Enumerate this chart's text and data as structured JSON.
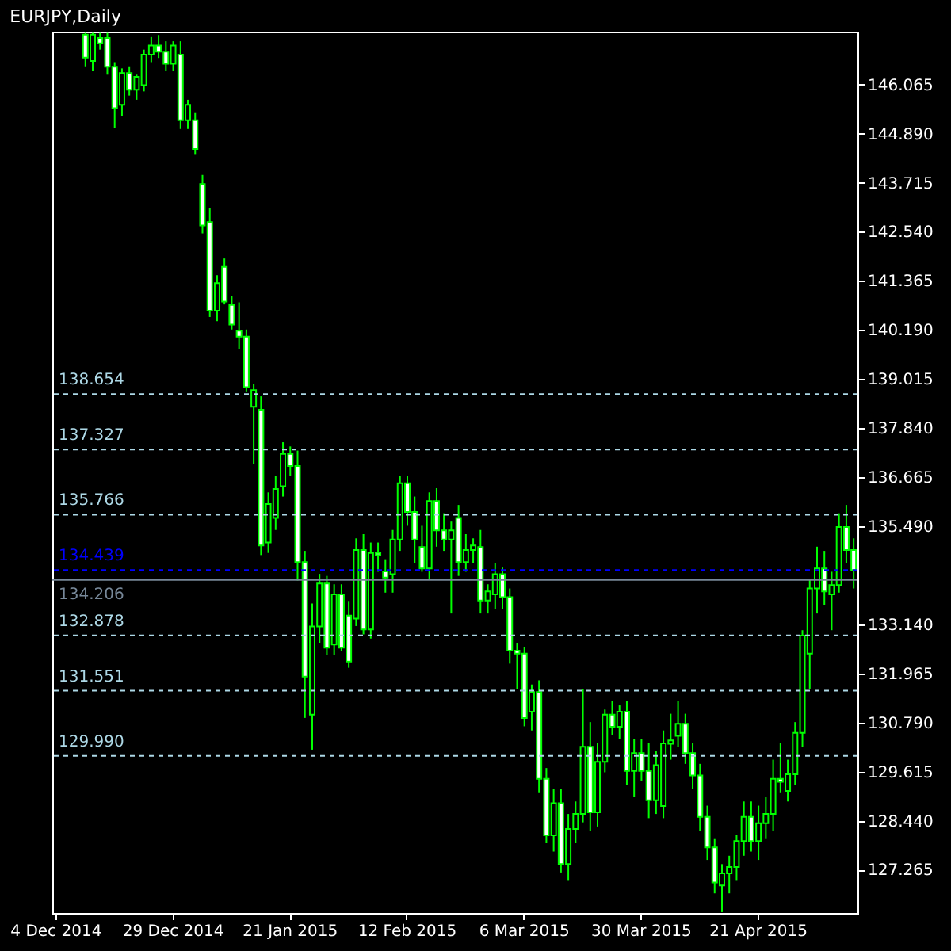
{
  "chart_data": {
    "type": "candlestick",
    "title": "EURJPY,Daily",
    "categories": [
      "4 Dec 2014",
      null,
      null,
      null,
      null,
      null,
      null,
      null,
      null,
      null,
      null,
      null,
      null,
      null,
      null,
      null,
      "29 Dec 2014",
      null,
      null,
      null,
      null,
      null,
      null,
      null,
      null,
      null,
      null,
      null,
      null,
      null,
      null,
      null,
      "21 Jan 2015",
      null,
      null,
      null,
      null,
      null,
      null,
      null,
      null,
      null,
      null,
      null,
      null,
      null,
      null,
      null,
      "12 Feb 2015",
      null,
      null,
      null,
      null,
      null,
      null,
      null,
      null,
      null,
      null,
      null,
      null,
      null,
      null,
      null,
      "6 Mar 2015",
      null,
      null,
      null,
      null,
      null,
      null,
      null,
      null,
      null,
      null,
      null,
      null,
      null,
      null,
      null,
      "30 Mar 2015",
      null,
      null,
      null,
      null,
      null,
      null,
      null,
      null,
      null,
      null,
      null,
      null,
      null,
      null,
      null,
      "21 Apr 2015",
      null,
      null,
      null,
      null,
      null,
      null,
      null,
      null,
      null,
      null,
      null,
      null,
      null
    ],
    "ohlc": [
      null,
      null,
      null,
      null,
      [
        147.26,
        147.3,
        146.5,
        146.71
      ],
      [
        146.63,
        147.3,
        146.4,
        147.26
      ],
      [
        147.18,
        147.3,
        146.9,
        147.05
      ],
      [
        147.18,
        147.3,
        146.3,
        146.49
      ],
      [
        146.49,
        146.6,
        145.03,
        145.5
      ],
      [
        145.58,
        146.45,
        145.3,
        146.34
      ],
      [
        146.34,
        146.5,
        145.8,
        145.94
      ],
      [
        145.94,
        146.3,
        145.7,
        146.25
      ],
      [
        146.05,
        146.9,
        145.9,
        146.78
      ],
      [
        146.78,
        147.2,
        146.6,
        147.0
      ],
      [
        147.0,
        147.25,
        146.7,
        146.85
      ],
      [
        146.85,
        147.1,
        146.4,
        146.56
      ],
      [
        146.56,
        147.1,
        146.4,
        147.0
      ],
      [
        146.78,
        147.1,
        145.0,
        145.21
      ],
      [
        145.21,
        145.7,
        145.0,
        145.58
      ],
      [
        145.21,
        145.4,
        144.4,
        144.52
      ],
      [
        143.68,
        143.9,
        142.5,
        142.69
      ],
      [
        142.77,
        143.1,
        140.5,
        140.65
      ],
      [
        140.65,
        141.5,
        140.4,
        141.31
      ],
      [
        141.7,
        141.9,
        140.8,
        140.87
      ],
      [
        140.79,
        141.0,
        140.2,
        140.32
      ],
      [
        140.17,
        140.85,
        139.73,
        140.03
      ],
      [
        140.03,
        140.2,
        138.7,
        138.82
      ],
      [
        138.35,
        138.9,
        136.98,
        138.75
      ],
      [
        138.28,
        138.6,
        134.8,
        135.03
      ],
      [
        135.1,
        136.3,
        134.85,
        136.02
      ],
      [
        135.69,
        136.7,
        135.4,
        136.38
      ],
      [
        136.45,
        137.5,
        136.2,
        137.22
      ],
      [
        137.22,
        137.4,
        136.7,
        136.93
      ],
      [
        136.93,
        137.3,
        134.19,
        134.63
      ],
      [
        134.63,
        134.9,
        130.9,
        131.89
      ],
      [
        130.98,
        133.64,
        130.14,
        133.09
      ],
      [
        133.09,
        134.35,
        132.7,
        134.12
      ],
      [
        134.12,
        134.3,
        132.4,
        132.58
      ],
      [
        132.66,
        134.1,
        132.4,
        133.86
      ],
      [
        133.86,
        134.1,
        132.5,
        132.58
      ],
      [
        133.35,
        133.7,
        132.1,
        132.25
      ],
      [
        133.28,
        135.2,
        133.1,
        134.92
      ],
      [
        134.92,
        135.3,
        132.9,
        133.02
      ],
      [
        133.02,
        135.1,
        132.8,
        134.85
      ],
      [
        134.85,
        135.1,
        134.4,
        134.8
      ],
      [
        134.41,
        134.7,
        133.9,
        134.26
      ],
      [
        134.34,
        135.4,
        133.9,
        135.17
      ],
      [
        135.17,
        136.7,
        134.9,
        136.52
      ],
      [
        136.52,
        136.7,
        135.5,
        135.83
      ],
      [
        135.83,
        136.2,
        134.6,
        135.17
      ],
      [
        134.99,
        135.5,
        134.4,
        134.48
      ],
      [
        134.48,
        136.3,
        134.2,
        136.09
      ],
      [
        136.09,
        136.4,
        135.0,
        135.39
      ],
      [
        135.39,
        135.8,
        134.9,
        135.17
      ],
      [
        135.17,
        135.6,
        133.4,
        135.39
      ],
      [
        135.69,
        136.0,
        134.3,
        134.63
      ],
      [
        134.63,
        135.3,
        134.4,
        134.92
      ],
      [
        134.92,
        135.2,
        134.6,
        135.03
      ],
      [
        134.99,
        135.4,
        133.4,
        133.71
      ],
      [
        133.71,
        134.1,
        133.4,
        133.93
      ],
      [
        133.86,
        134.6,
        133.5,
        134.34
      ],
      [
        134.34,
        134.5,
        133.5,
        133.79
      ],
      [
        133.79,
        134.0,
        132.2,
        132.51
      ],
      [
        132.51,
        132.7,
        131.6,
        132.44
      ],
      [
        132.44,
        132.6,
        130.7,
        130.9
      ],
      [
        131.05,
        131.7,
        130.6,
        131.52
      ],
      [
        131.52,
        131.8,
        129.1,
        129.44
      ],
      [
        129.44,
        129.7,
        127.9,
        128.09
      ],
      [
        128.09,
        129.2,
        127.7,
        128.86
      ],
      [
        128.86,
        129.2,
        127.2,
        127.4
      ],
      [
        127.4,
        128.6,
        127.0,
        128.24
      ],
      [
        128.24,
        128.9,
        127.9,
        128.6
      ],
      [
        128.6,
        131.6,
        128.4,
        130.21
      ],
      [
        130.21,
        130.8,
        128.2,
        128.64
      ],
      [
        128.64,
        130.3,
        128.3,
        129.85
      ],
      [
        129.85,
        131.1,
        129.6,
        130.98
      ],
      [
        130.98,
        131.3,
        130.5,
        130.69
      ],
      [
        130.69,
        131.2,
        130.4,
        131.05
      ],
      [
        131.05,
        131.3,
        129.3,
        129.63
      ],
      [
        129.63,
        130.4,
        129.0,
        130.06
      ],
      [
        130.06,
        130.4,
        129.4,
        129.63
      ],
      [
        129.63,
        130.3,
        128.5,
        128.93
      ],
      [
        128.93,
        130.1,
        128.6,
        129.77
      ],
      [
        128.79,
        130.6,
        128.5,
        130.29
      ],
      [
        130.28,
        131.0,
        129.9,
        130.36
      ],
      [
        130.47,
        131.3,
        130.2,
        130.76
      ],
      [
        130.76,
        131.0,
        129.8,
        130.06
      ],
      [
        130.06,
        130.3,
        129.2,
        129.52
      ],
      [
        129.52,
        129.8,
        128.2,
        128.53
      ],
      [
        128.53,
        128.8,
        127.5,
        127.8
      ],
      [
        127.8,
        128.0,
        126.7,
        126.96
      ],
      [
        126.89,
        127.4,
        126.25,
        127.18
      ],
      [
        127.18,
        127.6,
        126.7,
        127.33
      ],
      [
        127.33,
        128.1,
        127.0,
        127.95
      ],
      [
        127.95,
        128.9,
        127.6,
        128.53
      ],
      [
        128.53,
        128.9,
        127.7,
        127.95
      ],
      [
        127.95,
        128.8,
        127.5,
        128.38
      ],
      [
        128.38,
        129.0,
        128.0,
        128.6
      ],
      [
        128.6,
        129.9,
        128.2,
        129.44
      ],
      [
        129.44,
        130.3,
        129.1,
        129.37
      ],
      [
        129.15,
        129.9,
        128.9,
        129.55
      ],
      [
        129.55,
        130.8,
        129.3,
        130.54
      ],
      [
        130.54,
        133.0,
        130.2,
        132.87
      ],
      [
        132.44,
        134.2,
        131.6,
        134.0
      ],
      [
        134.0,
        135.0,
        133.4,
        134.48
      ],
      [
        134.48,
        134.9,
        133.6,
        133.93
      ],
      [
        133.86,
        134.4,
        133.0,
        134.08
      ],
      [
        134.08,
        135.8,
        133.9,
        135.47
      ],
      [
        135.47,
        136.0,
        134.6,
        134.92
      ],
      [
        134.92,
        135.2,
        134.0,
        134.44
      ]
    ],
    "ylim": [
      126.23,
      147.33
    ],
    "yticks": [
      146.065,
      {
        "value": 144.89,
        "label": "144.890"
      },
      143.715,
      {
        "value": 142.54,
        "label": "142.540"
      },
      141.365,
      {
        "value": 140.19,
        "label": "140.190"
      },
      139.015,
      {
        "value": 137.84,
        "label": "137.840"
      },
      136.665,
      {
        "value": 135.49,
        "label": "135.490"
      },
      {
        "value": 133.14,
        "label": "133.140"
      },
      131.965,
      {
        "value": 130.79,
        "label": "130.790"
      },
      129.615,
      {
        "value": 128.44,
        "label": "128.440"
      },
      127.265
    ],
    "ref_lines": [
      {
        "axis": "y",
        "value": 138.654,
        "label": "138.654",
        "color": "#add8e6",
        "line_style": "dashed"
      },
      {
        "axis": "y",
        "value": 137.327,
        "label": "137.327",
        "color": "#add8e6",
        "line_style": "dashed"
      },
      {
        "axis": "y",
        "value": 135.766,
        "label": "135.766",
        "color": "#add8e6",
        "line_style": "dashed"
      },
      {
        "axis": "y",
        "value": 134.439,
        "label": "134.439",
        "color": "#0000ff",
        "line_style": "dashed"
      },
      {
        "axis": "y",
        "value": 134.206,
        "label": "134.206",
        "color": "#778899",
        "line_style": "solid"
      },
      {
        "axis": "y",
        "value": 132.878,
        "label": "132.878",
        "color": "#add8e6",
        "line_style": "dashed"
      },
      {
        "axis": "y",
        "value": 131.551,
        "label": "131.551",
        "color": "#add8e6",
        "line_style": "dashed"
      },
      {
        "axis": "y",
        "value": 129.99,
        "label": "129.990",
        "color": "#add8e6",
        "line_style": "dashed"
      }
    ],
    "grid": false
  }
}
